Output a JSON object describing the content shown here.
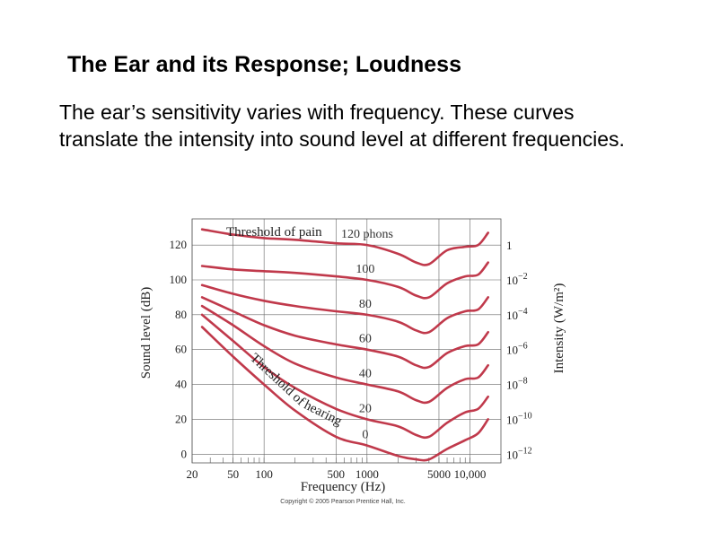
{
  "slide": {
    "title": "The Ear and its Response; Loudness",
    "body": "The ear’s sensitivity varies with frequency. These curves translate the intensity into sound level at different frequencies."
  },
  "chart_data": {
    "type": "line",
    "title": "",
    "xlabel": "Frequency (Hz)",
    "ylabel": "Sound level (dB)",
    "y2label": "Intensity (W/m²)",
    "xscale": "log",
    "xlim": [
      20,
      20000
    ],
    "ylim": [
      -5,
      135
    ],
    "x_ticks": [
      "20",
      "50",
      "100",
      "500",
      "1000",
      "5000",
      "10,000"
    ],
    "x_tick_values": [
      20,
      50,
      100,
      500,
      1000,
      5000,
      10000
    ],
    "y_ticks": [
      0,
      20,
      40,
      60,
      80,
      100,
      120
    ],
    "y2_ticks": [
      {
        "base": "1",
        "exp": ""
      },
      {
        "base": "10",
        "exp": "−2"
      },
      {
        "base": "10",
        "exp": "−4"
      },
      {
        "base": "10",
        "exp": "−6"
      },
      {
        "base": "10",
        "exp": "−8"
      },
      {
        "base": "10",
        "exp": "−10"
      },
      {
        "base": "10",
        "exp": "−12"
      }
    ],
    "line_color": "#c0394b",
    "grid": true,
    "x": [
      25,
      50,
      100,
      200,
      500,
      1000,
      2000,
      3000,
      4000,
      6000,
      9000,
      12000,
      15000
    ],
    "series": [
      {
        "name": "120 phons",
        "values": [
          129,
          126,
          124,
          123,
          121,
          120,
          115,
          110,
          109,
          117,
          119,
          120,
          127
        ]
      },
      {
        "name": "100",
        "values": [
          108,
          106,
          105,
          104,
          102,
          100,
          96,
          91,
          90,
          98,
          102,
          103,
          110
        ]
      },
      {
        "name": "80",
        "values": [
          97,
          92,
          88,
          85,
          82,
          80,
          76,
          71,
          70,
          78,
          82,
          83,
          90
        ]
      },
      {
        "name": "60",
        "values": [
          90,
          82,
          74,
          68,
          63,
          60,
          56,
          51,
          50,
          58,
          62,
          63,
          70
        ]
      },
      {
        "name": "40",
        "values": [
          85,
          74,
          62,
          52,
          44,
          40,
          36,
          31,
          30,
          38,
          43,
          44,
          51
        ]
      },
      {
        "name": "20",
        "values": [
          80,
          65,
          50,
          38,
          26,
          20,
          16,
          11,
          10,
          18,
          24,
          26,
          33
        ]
      },
      {
        "name": "0",
        "values": [
          73,
          56,
          40,
          25,
          10,
          5,
          -1,
          -3,
          -3,
          3,
          8,
          12,
          20
        ]
      }
    ],
    "annotations": [
      {
        "text": "Threshold of pain"
      },
      {
        "text": "Threshold of hearing"
      }
    ],
    "copyright": "Copyright © 2005 Pearson Prentice Hall, Inc."
  }
}
